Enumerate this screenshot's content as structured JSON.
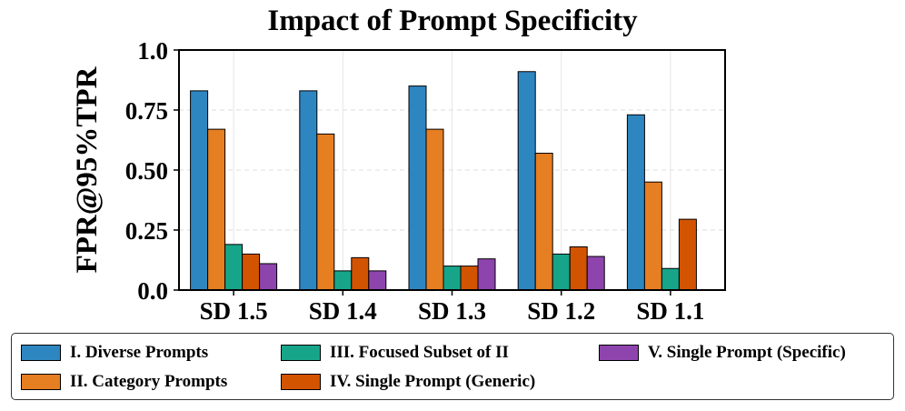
{
  "chart_data": {
    "type": "bar",
    "title": "Impact of Prompt Specificity",
    "xlabel": "",
    "ylabel": "FPR@95%TPR",
    "ylim": [
      0,
      1.0
    ],
    "yticks": [
      "0.0",
      "0.25",
      "0.50",
      "0.75",
      "1.0"
    ],
    "ytick_values": [
      0,
      0.25,
      0.5,
      0.75,
      1.0
    ],
    "grid": true,
    "legend_position": "bottom",
    "categories": [
      "SD 1.5",
      "SD 1.4",
      "SD 1.3",
      "SD 1.2",
      "SD 1.1"
    ],
    "series": [
      {
        "name": "I. Diverse Prompts",
        "color": "#2e86c1",
        "values": [
          0.83,
          0.83,
          0.85,
          0.91,
          0.73
        ]
      },
      {
        "name": "II. Category Prompts",
        "color": "#e67e22",
        "values": [
          0.67,
          0.65,
          0.67,
          0.57,
          0.45
        ]
      },
      {
        "name": "III. Focused Subset of II",
        "color": "#17a589",
        "values": [
          0.19,
          0.08,
          0.1,
          0.15,
          0.09
        ]
      },
      {
        "name": "IV. Single Prompt (Generic)",
        "color": "#d35400",
        "values": [
          0.15,
          0.135,
          0.1,
          0.18,
          0.295
        ]
      },
      {
        "name": "V. Single Prompt (Specific)",
        "color": "#8e44ad",
        "values": [
          0.11,
          0.08,
          0.13,
          0.14,
          null
        ]
      }
    ]
  }
}
